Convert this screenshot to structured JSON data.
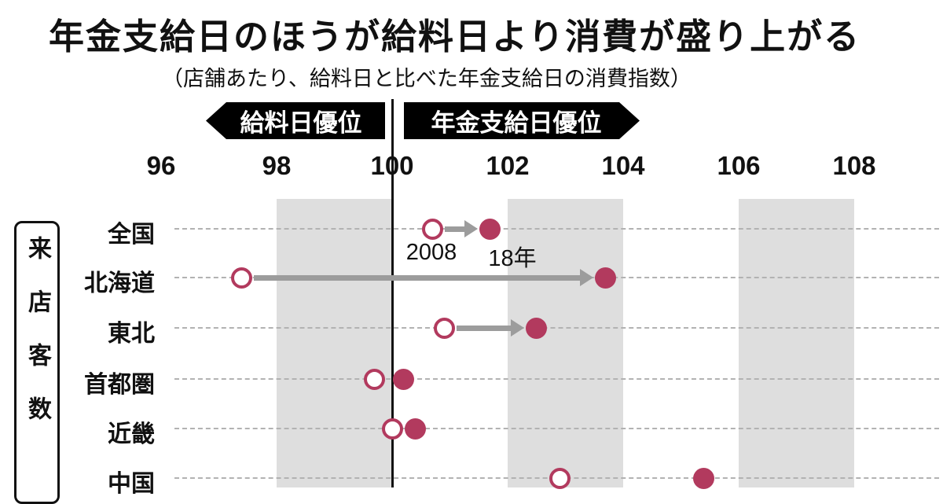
{
  "title": "年金支給日のほうが給料日より消費が盛り上がる",
  "subtitle": "（店舗あたり、給料日と比べた年金支給日の消費指数）",
  "y_axis_label": "来店客数",
  "header": {
    "left_label": "給料日優位",
    "right_label": "年金支給日優位"
  },
  "annotations": {
    "open_year": "2008",
    "filled_year": "18年"
  },
  "colors": {
    "accent": "#b23a5e",
    "arrow": "#9c9c9c",
    "band": "#dedede",
    "baseline_line": "#111111"
  },
  "chart_data": {
    "type": "dumbbell",
    "title": "年金支給日のほうが給料日より消費が盛り上がる",
    "subtitle": "店舗あたり、給料日と比べた年金支給日の消費指数",
    "x_ticks": [
      96,
      98,
      100,
      102,
      104,
      106,
      108
    ],
    "x_range": [
      96,
      108
    ],
    "baseline": 100,
    "shaded_bands": [
      [
        98,
        100
      ],
      [
        102,
        104
      ],
      [
        106,
        108
      ]
    ],
    "series_labels": {
      "open": "2008",
      "filled": "18年"
    },
    "left_axis_label": "来店客数",
    "zone_labels": {
      "left_of_100": "給料日優位",
      "right_of_100": "年金支給日優位"
    },
    "rows": [
      {
        "key": "nationwide",
        "label": "全国",
        "open": 100.7,
        "filled": 101.7,
        "arrow": true,
        "partially_visible": false
      },
      {
        "key": "hokkaido",
        "label": "北海道",
        "open": 97.4,
        "filled": 103.7,
        "arrow": true,
        "partially_visible": false
      },
      {
        "key": "tohoku",
        "label": "東北",
        "open": 100.9,
        "filled": 102.5,
        "arrow": true,
        "partially_visible": false
      },
      {
        "key": "metropolitan",
        "label": "首都圏",
        "open": 99.7,
        "filled": 100.2,
        "arrow": false,
        "partially_visible": false
      },
      {
        "key": "kinki",
        "label": "近畿",
        "open": 100.0,
        "filled": 100.4,
        "arrow": false,
        "partially_visible": false
      },
      {
        "key": "chugoku",
        "label": "中国",
        "open": 102.9,
        "filled": 105.4,
        "arrow": false,
        "partially_visible": true
      }
    ]
  }
}
